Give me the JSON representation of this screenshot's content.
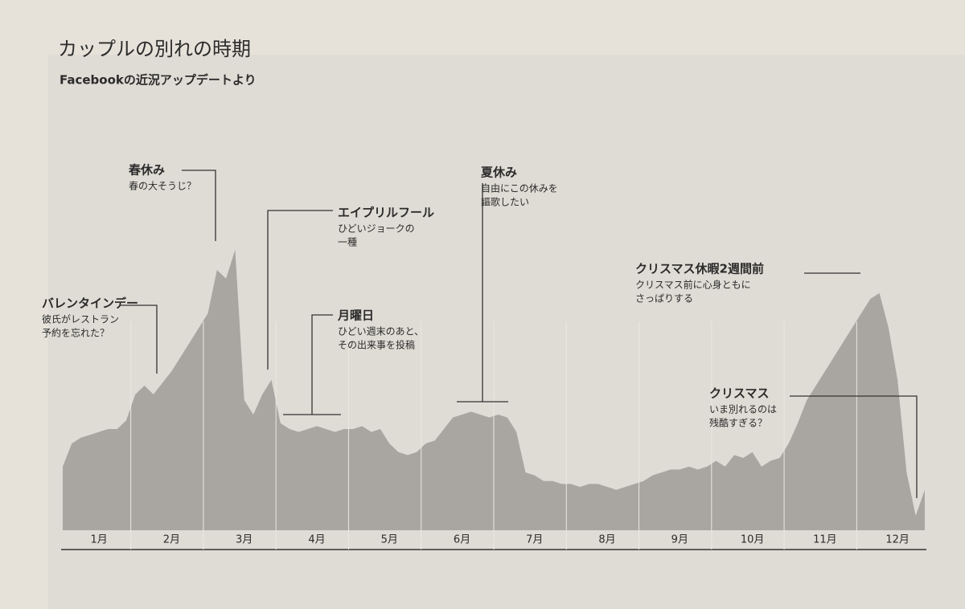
{
  "chart_data": {
    "type": "area",
    "title": "カップルの別れの時期",
    "subtitle": "Facebookの近況アップデートより",
    "color": "#a9a6a2",
    "ylim": [
      0,
      100
    ],
    "categories": [
      null,
      null,
      null,
      null,
      "1月",
      null,
      null,
      null,
      null,
      null,
      null,
      null,
      "2月",
      null,
      null,
      null,
      null,
      null,
      null,
      null,
      "3月",
      null,
      null,
      null,
      null,
      null,
      null,
      null,
      "4月",
      null,
      null,
      null,
      null,
      null,
      null,
      null,
      "5月",
      null,
      null,
      null,
      null,
      null,
      null,
      null,
      "6月",
      null,
      null,
      null,
      null,
      null,
      null,
      null,
      "7月",
      null,
      null,
      null,
      null,
      null,
      null,
      null,
      "8月",
      null,
      null,
      null,
      null,
      null,
      null,
      null,
      "9月",
      null,
      null,
      null,
      null,
      null,
      null,
      null,
      "10月",
      null,
      null,
      null,
      null,
      null,
      null,
      null,
      "11月",
      null,
      null,
      null,
      null,
      null,
      null,
      null,
      "12月",
      null,
      null,
      null
    ],
    "values": [
      22,
      30,
      32,
      33,
      34,
      35,
      35,
      38,
      47,
      50,
      47,
      51,
      55,
      60,
      65,
      70,
      75,
      90,
      87,
      97,
      45,
      40,
      47,
      52,
      37,
      35,
      34,
      35,
      36,
      35,
      34,
      35,
      35,
      36,
      34,
      35,
      30,
      27,
      26,
      27,
      30,
      31,
      35,
      39,
      40,
      41,
      40,
      39,
      40,
      39,
      34,
      20,
      19,
      17,
      17,
      16,
      16,
      15,
      16,
      16,
      15,
      14,
      15,
      16,
      17,
      19,
      20,
      21,
      21,
      22,
      21,
      22,
      24,
      22,
      26,
      25,
      27,
      22,
      24,
      25,
      30,
      37,
      45,
      50,
      55,
      60,
      65,
      70,
      75,
      80,
      82,
      70,
      52,
      20,
      5,
      14
    ],
    "annotations": [
      {
        "title": "バレンタインデー",
        "lines": [
          "彼氏がレストラン",
          "予約を忘れた？"
        ]
      },
      {
        "title": "春休み",
        "lines": [
          "春の大そうじ？"
        ]
      },
      {
        "title": "エイプリルフール",
        "lines": [
          "ひどいジョークの",
          "一種"
        ]
      },
      {
        "title": "月曜日",
        "lines": [
          "ひどい週末のあと、",
          "その出来事を投稿"
        ]
      },
      {
        "title": "夏休み",
        "lines": [
          "自由にこの休みを",
          "謳歌したい"
        ]
      },
      {
        "title": "クリスマス休暇2週間前",
        "lines": [
          "クリスマス前に心身ともに",
          "さっぱりする"
        ]
      },
      {
        "title": "クリスマス",
        "lines": [
          "いま別れるのは",
          "残酷すぎる？"
        ]
      }
    ]
  }
}
